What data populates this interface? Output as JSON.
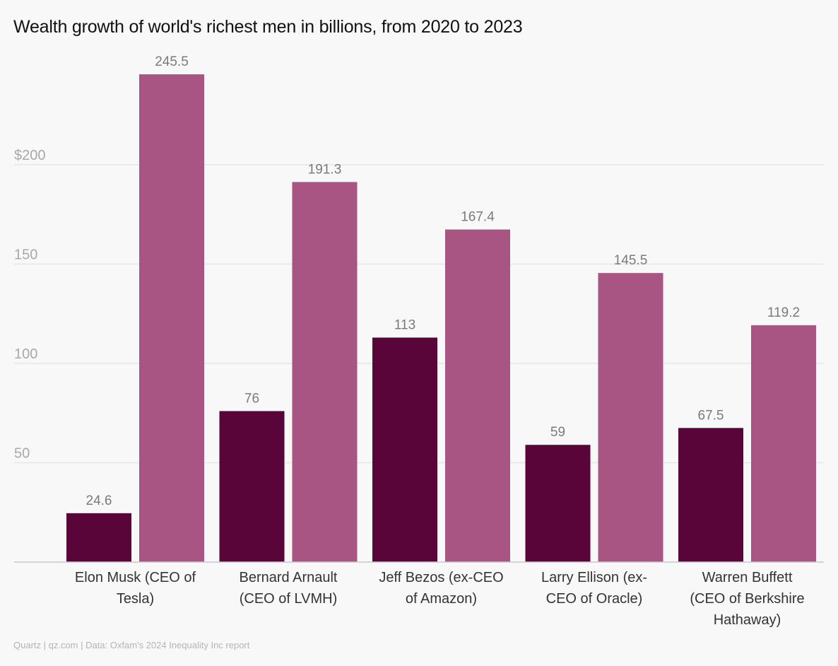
{
  "chart_data": {
    "type": "bar",
    "title": "Wealth growth of world's richest men in billions, from 2020 to 2023",
    "xlabel": "",
    "ylabel": "",
    "ylim": [
      0,
      250
    ],
    "yticks": [
      50,
      100,
      150,
      200
    ],
    "ytick_labels": [
      "50",
      "100",
      "150",
      "$200"
    ],
    "grid": true,
    "legend": "none",
    "categories": [
      "Elon Musk (CEO of Tesla)",
      "Bernard Arnault (CEO of LVMH)",
      "Jeff Bezos (ex-CEO of Amazon)",
      "Larry Ellison (ex-CEO of Oracle)",
      "Warren Buffett (CEO of Berkshire Hathaway)"
    ],
    "category_lines": [
      [
        "Elon Musk (CEO of",
        "Tesla)"
      ],
      [
        "Bernard Arnault",
        "(CEO of LVMH)"
      ],
      [
        "Jeff Bezos (ex-CEO",
        "of Amazon)"
      ],
      [
        "Larry Ellison (ex-",
        "CEO of Oracle)"
      ],
      [
        "Warren Buffett",
        "(CEO of Berkshire",
        "Hathaway)"
      ]
    ],
    "series": [
      {
        "name": "2020",
        "color": "#5a053a",
        "values": [
          24.6,
          76,
          113,
          59,
          67.5
        ],
        "labels": [
          "24.6",
          "76",
          "113",
          "59",
          "67.5"
        ]
      },
      {
        "name": "2023",
        "color": "#a85584",
        "values": [
          245.5,
          191.3,
          167.4,
          145.5,
          119.2
        ],
        "labels": [
          "245.5",
          "191.3",
          "167.4",
          "145.5",
          "119.2"
        ]
      }
    ]
  },
  "source": "Quartz | qz.com | Data: Oxfam's 2024 Inequality Inc report",
  "colors": {
    "gridline": "#e6e6e6",
    "axis": "#c8c8c8",
    "background": "#f8f8f8"
  }
}
